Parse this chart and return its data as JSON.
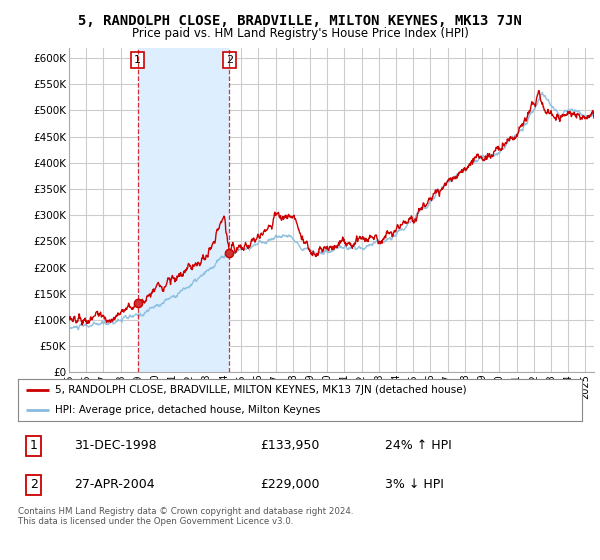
{
  "title": "5, RANDOLPH CLOSE, BRADVILLE, MILTON KEYNES, MK13 7JN",
  "subtitle": "Price paid vs. HM Land Registry's House Price Index (HPI)",
  "ylim": [
    0,
    620000
  ],
  "yticks": [
    0,
    50000,
    100000,
    150000,
    200000,
    250000,
    300000,
    350000,
    400000,
    450000,
    500000,
    550000,
    600000
  ],
  "bg_color": "#ffffff",
  "grid_color": "#cccccc",
  "shade_color": "#ddeeff",
  "hpi_color": "#88bbdd",
  "price_color": "#cc0000",
  "sale1_date": 1998.99,
  "sale1_price": 133950,
  "sale1_label": "1",
  "sale2_date": 2004.32,
  "sale2_price": 229000,
  "sale2_label": "2",
  "legend_line1": "5, RANDOLPH CLOSE, BRADVILLE, MILTON KEYNES, MK13 7JN (detached house)",
  "legend_line2": "HPI: Average price, detached house, Milton Keynes",
  "table_row1_num": "1",
  "table_row1_date": "31-DEC-1998",
  "table_row1_price": "£133,950",
  "table_row1_hpi": "24% ↑ HPI",
  "table_row2_num": "2",
  "table_row2_date": "27-APR-2004",
  "table_row2_price": "£229,000",
  "table_row2_hpi": "3% ↓ HPI",
  "footer": "Contains HM Land Registry data © Crown copyright and database right 2024.\nThis data is licensed under the Open Government Licence v3.0.",
  "xstart": 1995.0,
  "xend": 2025.5
}
